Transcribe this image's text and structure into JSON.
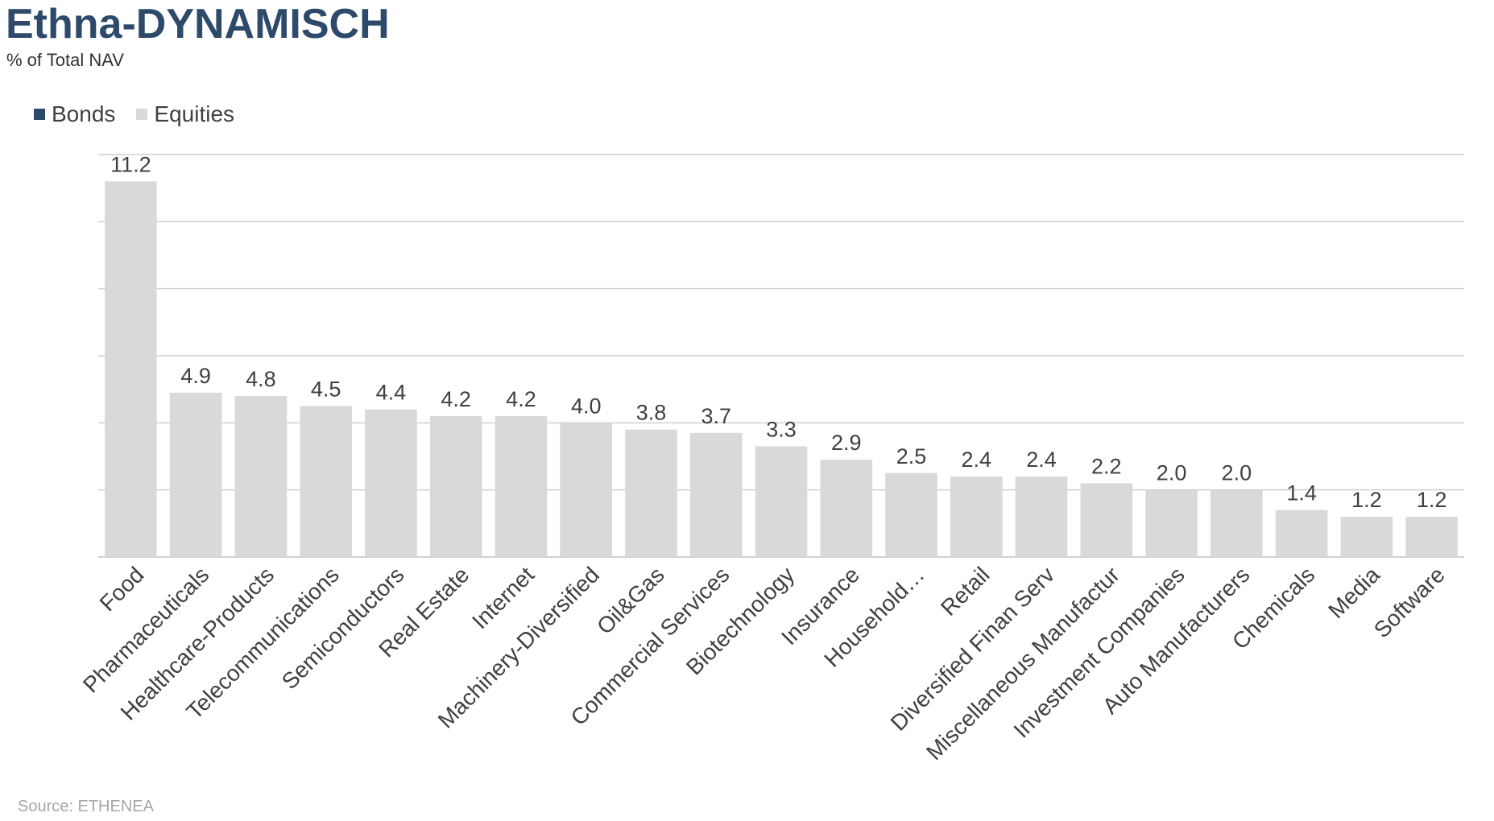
{
  "title": "Ethna-DYNAMISCH",
  "subtitle": "% of Total NAV",
  "source": "Source: ETHENEA",
  "colors": {
    "bonds": "#2d4a6b",
    "equities": "#d9d9d9",
    "gridline": "#d0d0d0",
    "title": "#2d4a6b"
  },
  "chart_data": {
    "type": "bar",
    "title": "Ethna-DYNAMISCH",
    "subtitle": "% of Total NAV",
    "ylim": [
      0,
      12
    ],
    "grid": true,
    "legend_position": "top-left",
    "legend": [
      "Bonds",
      "Equities"
    ],
    "categories": [
      "Food",
      "Pharmaceuticals",
      "Healthcare-Products",
      "Telecommunications",
      "Semiconductors",
      "Real Estate",
      "Internet",
      "Machinery-Diversified",
      "Oil&Gas",
      "Commercial Services",
      "Biotechnology",
      "Insurance",
      "Household…",
      "Retail",
      "Diversified Finan Serv",
      "Miscellaneous Manufactur",
      "Investment Companies",
      "Auto Manufacturers",
      "Chemicals",
      "Media",
      "Software"
    ],
    "series": [
      {
        "name": "Bonds",
        "values": [
          0,
          0,
          0,
          0,
          0,
          0,
          0,
          0,
          0,
          0,
          0,
          0,
          0,
          0,
          0,
          0,
          0,
          0,
          0,
          0,
          0
        ]
      },
      {
        "name": "Equities",
        "values": [
          11.2,
          4.9,
          4.8,
          4.5,
          4.4,
          4.2,
          4.2,
          4.0,
          3.8,
          3.7,
          3.3,
          2.9,
          2.5,
          2.4,
          2.4,
          2.2,
          2.0,
          2.0,
          1.4,
          1.2,
          1.2
        ]
      }
    ],
    "data_labels": [
      "11.2",
      "4.9",
      "4.8",
      "4.5",
      "4.4",
      "4.2",
      "4.2",
      "4.0",
      "3.8",
      "3.7",
      "3.3",
      "2.9",
      "2.5",
      "2.4",
      "2.4",
      "2.2",
      "2.0",
      "2.0",
      "1.4",
      "1.2",
      "1.2"
    ]
  }
}
